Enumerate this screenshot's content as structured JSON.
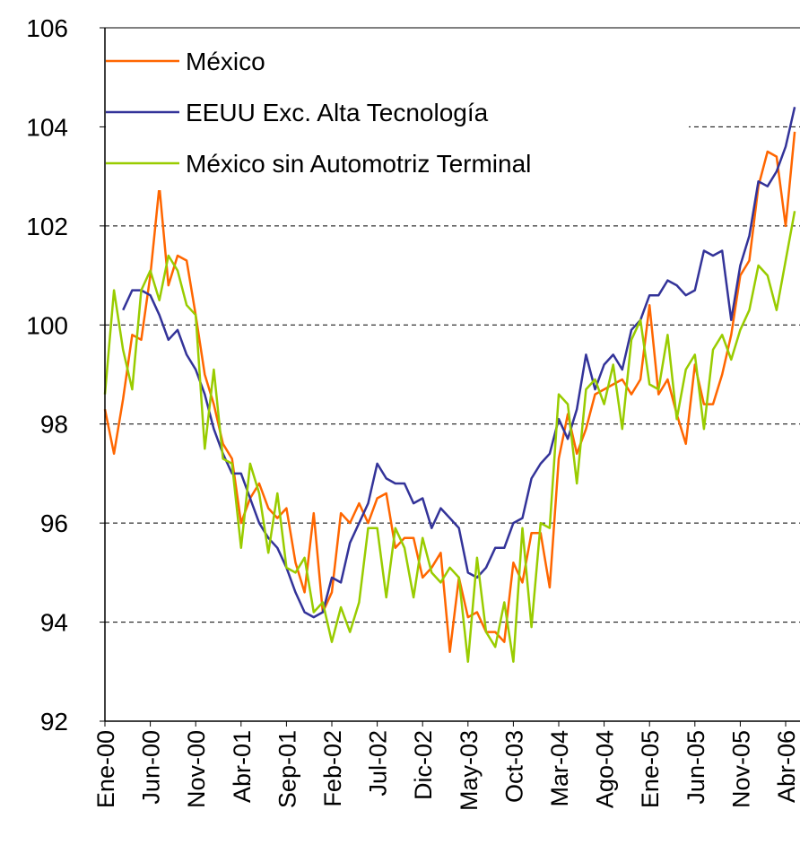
{
  "chart_data": {
    "type": "line",
    "categories": [
      "Ene-00",
      null,
      null,
      null,
      null,
      "Jun-00",
      null,
      null,
      null,
      null,
      "Nov-00",
      null,
      null,
      null,
      null,
      "Abr-01",
      null,
      null,
      null,
      null,
      "Sep-01",
      null,
      null,
      null,
      null,
      "Feb-02",
      null,
      null,
      null,
      null,
      "Jul-02",
      null,
      null,
      null,
      null,
      "Dic-02",
      null,
      null,
      null,
      null,
      "May-03",
      null,
      null,
      null,
      null,
      "Oct-03",
      null,
      null,
      null,
      null,
      "Mar-04",
      null,
      null,
      null,
      null,
      "Ago-04",
      null,
      null,
      null,
      null,
      "Ene-05",
      null,
      null,
      null,
      null,
      "Jun-05",
      null,
      null,
      null,
      null,
      "Nov-05",
      null,
      null,
      null,
      null,
      "Abr-06",
      null
    ],
    "series": [
      {
        "name": "México",
        "color": "#ff6600",
        "values": [
          98.3,
          97.4,
          98.5,
          99.8,
          99.7,
          101.0,
          102.8,
          100.8,
          101.4,
          101.3,
          100.2,
          99.0,
          98.4,
          97.6,
          97.3,
          96.0,
          96.5,
          96.8,
          96.3,
          96.1,
          96.3,
          95.2,
          94.6,
          96.2,
          94.2,
          94.6,
          96.2,
          96.0,
          96.4,
          96.0,
          96.5,
          96.6,
          95.5,
          95.7,
          95.7,
          94.9,
          95.1,
          95.4,
          93.4,
          94.9,
          94.1,
          94.2,
          93.8,
          93.8,
          93.6,
          95.2,
          94.8,
          95.8,
          95.8,
          94.7,
          97.3,
          98.2,
          97.4,
          97.9,
          98.6,
          98.7,
          98.8,
          98.9,
          98.6,
          98.9,
          100.4,
          98.6,
          98.9,
          98.2,
          97.6,
          99.2,
          98.4,
          98.4,
          99.0,
          99.8,
          101.0,
          101.3,
          102.8,
          103.5,
          103.4,
          102.0,
          103.9
        ]
      },
      {
        "name": "EEUU Exc. Alta Tecnología",
        "color": "#333399",
        "values": [
          null,
          null,
          100.3,
          100.7,
          100.7,
          100.6,
          100.2,
          99.7,
          99.9,
          99.4,
          99.1,
          98.6,
          97.9,
          97.4,
          97.0,
          97.0,
          96.5,
          96.0,
          95.7,
          95.5,
          95.1,
          94.6,
          94.2,
          94.1,
          94.2,
          94.9,
          94.8,
          95.6,
          96.0,
          96.4,
          97.2,
          96.9,
          96.8,
          96.8,
          96.4,
          96.5,
          95.9,
          96.3,
          96.1,
          95.9,
          95.0,
          94.9,
          95.1,
          95.5,
          95.5,
          96.0,
          96.1,
          96.9,
          97.2,
          97.4,
          98.1,
          97.7,
          98.3,
          99.4,
          98.7,
          99.2,
          99.4,
          99.1,
          99.9,
          100.1,
          100.6,
          100.6,
          100.9,
          100.8,
          100.6,
          100.7,
          101.5,
          101.4,
          101.5,
          100.1,
          101.2,
          101.8,
          102.9,
          102.8,
          103.1,
          103.6,
          104.4
        ]
      },
      {
        "name": "México sin Automotriz Terminal",
        "color": "#99cc00",
        "values": [
          98.6,
          100.7,
          99.5,
          98.7,
          100.7,
          101.1,
          100.5,
          101.4,
          101.1,
          100.4,
          100.2,
          97.5,
          99.1,
          97.3,
          97.2,
          95.5,
          97.2,
          96.6,
          95.4,
          96.6,
          95.1,
          95.0,
          95.3,
          94.2,
          94.4,
          93.6,
          94.3,
          93.8,
          94.4,
          95.9,
          95.9,
          94.5,
          95.9,
          95.5,
          94.5,
          95.7,
          95.0,
          94.8,
          95.1,
          94.9,
          93.2,
          95.3,
          93.8,
          93.5,
          94.4,
          93.2,
          95.9,
          93.9,
          96.0,
          95.9,
          98.6,
          98.4,
          96.8,
          98.7,
          98.9,
          98.4,
          99.2,
          97.9,
          99.7,
          100.1,
          98.8,
          98.7,
          99.8,
          98.1,
          99.1,
          99.4,
          97.9,
          99.5,
          99.8,
          99.3,
          99.9,
          100.3,
          101.2,
          101.0,
          100.3,
          101.3,
          102.3
        ]
      }
    ],
    "ylim": [
      92,
      106
    ],
    "yticks": [
      92,
      94,
      96,
      98,
      100,
      102,
      104,
      106
    ],
    "grid": true,
    "legend": "top-left"
  }
}
